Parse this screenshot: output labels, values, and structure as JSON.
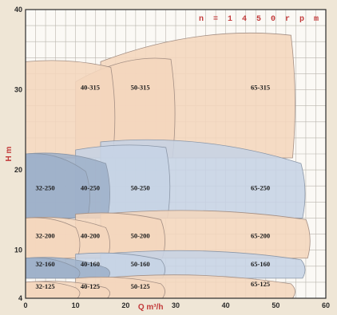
{
  "chart_data": {
    "type": "area",
    "title": "",
    "speed_label": "n = 1 4 5 0  r p m",
    "xlabel": "Q m³/h",
    "ylabel": "H m",
    "xlim": [
      0,
      60
    ],
    "ylim": [
      4,
      40
    ],
    "x_ticks": [
      0,
      10,
      20,
      30,
      40,
      50,
      60
    ],
    "y_ticks": [
      4,
      10,
      20,
      30,
      40
    ],
    "x_minor_step": 2,
    "y_minor_step": 2,
    "grid": true,
    "colors": {
      "background": "#efe6d6",
      "plot_area": "#fbf9f5",
      "grid": "#b9b5ad",
      "axis": "#2b2b2b",
      "orange_zone": "#f4d6bd",
      "orange_edge": "#a48f84",
      "blue_zone": "#c6d3e5",
      "blue_edge": "#8b97a8",
      "blue_dark_zone": "#9eb0c9",
      "accent_red": "#c23a3a"
    },
    "zones": [
      {
        "label": "65-315",
        "q": [
          15,
          54
        ],
        "h_top": [
          33.5,
          37
        ],
        "h_bottom": 21.5,
        "color": "orange"
      },
      {
        "label": "50-315",
        "q": [
          10,
          30
        ],
        "h_top": [
          31,
          34
        ],
        "h_bottom": 21.5,
        "color": "orange"
      },
      {
        "label": "40-315",
        "q": [
          0,
          18
        ],
        "h_top": [
          33.5,
          33
        ],
        "h_bottom": 21.5,
        "color": "orange"
      },
      {
        "label": "65-250",
        "q": [
          15,
          56
        ],
        "h_top": [
          23.5,
          21
        ],
        "h_bottom": 14,
        "color": "blue"
      },
      {
        "label": "50-250",
        "q": [
          10,
          29
        ],
        "h_top": [
          22.5,
          23
        ],
        "h_bottom": 14,
        "color": "blue"
      },
      {
        "label": "40-250",
        "q": [
          0,
          17
        ],
        "h_top": [
          22,
          21
        ],
        "h_bottom": 14,
        "color": "blue_dark"
      },
      {
        "label": "32-250",
        "q": [
          0,
          13
        ],
        "h_top": [
          22,
          20
        ],
        "h_bottom": 14,
        "color": "blue_dark"
      },
      {
        "label": "65-200",
        "q": [
          15,
          57
        ],
        "h_top": [
          14.5,
          14
        ],
        "h_bottom": 9,
        "color": "orange"
      },
      {
        "label": "50-200",
        "q": [
          10,
          28
        ],
        "h_top": [
          14.5,
          14
        ],
        "h_bottom": 9,
        "color": "orange"
      },
      {
        "label": "40-200",
        "q": [
          0,
          17
        ],
        "h_top": [
          14,
          13
        ],
        "h_bottom": 9,
        "color": "orange"
      },
      {
        "label": "32-200",
        "q": [
          0,
          11
        ],
        "h_top": [
          14,
          13
        ],
        "h_bottom": 9,
        "color": "orange"
      },
      {
        "label": "65-160",
        "q": [
          15,
          56
        ],
        "h_top": [
          9.5,
          9
        ],
        "h_bottom": 6.5,
        "color": "blue"
      },
      {
        "label": "50-160",
        "q": [
          10,
          28
        ],
        "h_top": [
          9.5,
          9
        ],
        "h_bottom": 6.5,
        "color": "blue"
      },
      {
        "label": "40-160",
        "q": [
          0,
          17
        ],
        "h_top": [
          9,
          8
        ],
        "h_bottom": 6.5,
        "color": "blue_dark"
      },
      {
        "label": "32-160",
        "q": [
          0,
          11
        ],
        "h_top": [
          9,
          8
        ],
        "h_bottom": 6.5,
        "color": "blue_dark"
      },
      {
        "label": "65-125",
        "q": [
          15,
          54
        ],
        "h_top": [
          6.5,
          6
        ],
        "h_bottom": 4,
        "color": "orange"
      },
      {
        "label": "50-125",
        "q": [
          10,
          28
        ],
        "h_top": [
          6.5,
          6
        ],
        "h_bottom": 4,
        "color": "orange"
      },
      {
        "label": "40-125",
        "q": [
          0,
          17
        ],
        "h_top": [
          6,
          5.5
        ],
        "h_bottom": 4,
        "color": "orange"
      },
      {
        "label": "32-125",
        "q": [
          0,
          11
        ],
        "h_top": [
          6,
          5.5
        ],
        "h_bottom": 4,
        "color": "orange"
      }
    ],
    "label_positions": [
      {
        "label": "65-315",
        "q": 45,
        "h": 30
      },
      {
        "label": "50-315",
        "q": 21,
        "h": 30
      },
      {
        "label": "40-315",
        "q": 11,
        "h": 30
      },
      {
        "label": "65-250",
        "q": 45,
        "h": 17.5
      },
      {
        "label": "50-250",
        "q": 21,
        "h": 17.5
      },
      {
        "label": "40-250",
        "q": 11,
        "h": 17.5
      },
      {
        "label": "32-250",
        "q": 2,
        "h": 17.5
      },
      {
        "label": "65-200",
        "q": 45,
        "h": 11.5
      },
      {
        "label": "50-200",
        "q": 21,
        "h": 11.5
      },
      {
        "label": "40-200",
        "q": 11,
        "h": 11.5
      },
      {
        "label": "32-200",
        "q": 2,
        "h": 11.5
      },
      {
        "label": "65-160",
        "q": 45,
        "h": 8
      },
      {
        "label": "50-160",
        "q": 21,
        "h": 8
      },
      {
        "label": "40-160",
        "q": 11,
        "h": 8
      },
      {
        "label": "32-160",
        "q": 2,
        "h": 8
      },
      {
        "label": "65-125",
        "q": 45,
        "h": 5.5
      },
      {
        "label": "50-125",
        "q": 21,
        "h": 5.2
      },
      {
        "label": "40-125",
        "q": 11,
        "h": 5.2
      },
      {
        "label": "32-125",
        "q": 2,
        "h": 5.2
      }
    ]
  }
}
